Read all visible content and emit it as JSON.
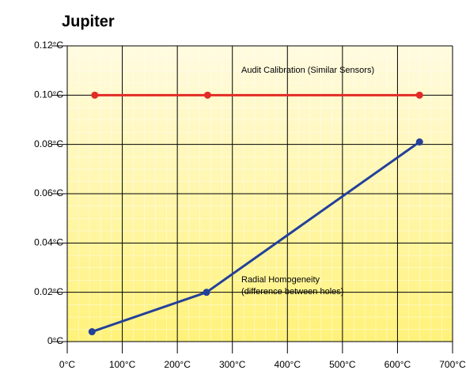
{
  "chart_data": {
    "type": "line",
    "title": "Jupiter",
    "series": [
      {
        "name": "Audit Calibration (Similar Sensors)",
        "color": "#e32b25",
        "x": [
          50,
          255,
          640
        ],
        "values": [
          0.1,
          0.1,
          0.1
        ]
      },
      {
        "name": "Radial Homogeneity",
        "color": "#23409a",
        "x": [
          45,
          253,
          640
        ],
        "values": [
          0.004,
          0.02,
          0.081
        ]
      }
    ],
    "annotations": [
      "(difference between holes)"
    ],
    "xlim": [
      0,
      700
    ],
    "xticks": [
      {
        "value": 0,
        "label": "0°C"
      },
      {
        "value": 100,
        "label": "100°C"
      },
      {
        "value": 200,
        "label": "200°C"
      },
      {
        "value": 300,
        "label": "300°C"
      },
      {
        "value": 400,
        "label": "400°C"
      },
      {
        "value": 500,
        "label": "500°C"
      },
      {
        "value": 600,
        "label": "600°C"
      },
      {
        "value": 700,
        "label": "700°C"
      }
    ],
    "ylim": [
      0,
      0.12
    ],
    "yticks": [
      {
        "value": 0,
        "label": "0°C"
      },
      {
        "value": 0.02,
        "label": "0.02°C"
      },
      {
        "value": 0.04,
        "label": "0.04°C"
      },
      {
        "value": 0.06,
        "label": "0.06°C"
      },
      {
        "value": 0.08,
        "label": "0.08°C"
      },
      {
        "value": 0.1,
        "label": "0.10°C"
      },
      {
        "value": 0.12,
        "label": "0.12°C"
      }
    ],
    "grid": true
  }
}
